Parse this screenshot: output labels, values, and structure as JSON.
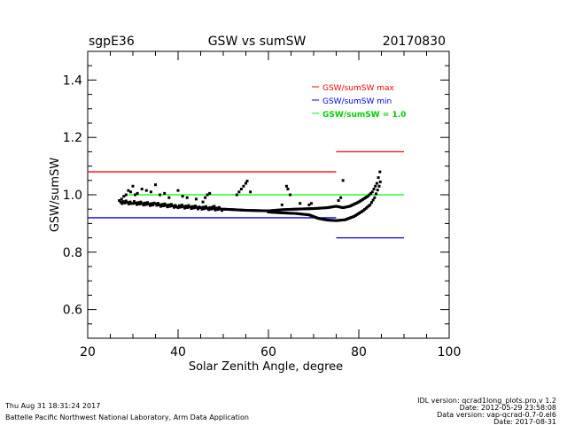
{
  "header": {
    "site": "sgpE36",
    "date": "20170830"
  },
  "footer": {
    "left_line1": "Thu Aug 31 18:31:24 2017",
    "left_line2": "Battelle Pacific Northwest National Laboratory, Arm Data Application",
    "right_line1": "IDL version: qcrad1long_plots.pro,v 1.2",
    "right_line2": "Date: 2012-05-29 23:58:08",
    "right_line3": "Data version: vap-qcrad-0.7-0.el6",
    "right_line4": "Date: 2017-08-31"
  },
  "colors": {
    "max": "#ff0000",
    "min": "#0000ff",
    "unity": "#00ff00",
    "points": "#000000"
  },
  "chart_data": {
    "type": "scatter",
    "title": "GSW vs sumSW",
    "xlabel": "Solar Zenith Angle, degree",
    "ylabel": "GSW/sumSW",
    "xlim": [
      20,
      100
    ],
    "ylim": [
      0.5,
      1.5
    ],
    "xticks": [
      "20",
      "40",
      "60",
      "80",
      "100"
    ],
    "xtick_values": [
      20,
      40,
      60,
      80,
      100
    ],
    "yticks": [
      "0.6",
      "0.8",
      "1.0",
      "1.2",
      "1.4"
    ],
    "ytick_values": [
      0.6,
      0.8,
      1.0,
      1.2,
      1.4
    ],
    "legend": {
      "placement": "top-right",
      "entries": [
        {
          "label": "GSW/sumSW max",
          "color": "#ff0000"
        },
        {
          "label": "GSW/sumSW min",
          "color": "#0000ff"
        },
        {
          "label": "GSW/sumSW = 1.0",
          "color": "#00ff00"
        }
      ]
    },
    "reference_lines": [
      {
        "name": "max-low-sza",
        "y": 1.08,
        "x": [
          20,
          75
        ],
        "color": "#ff0000"
      },
      {
        "name": "min-low-sza",
        "y": 0.92,
        "x": [
          20,
          75
        ],
        "color": "#0000ff"
      },
      {
        "name": "max-high-sza",
        "y": 1.15,
        "x": [
          75,
          90
        ],
        "color": "#ff0000"
      },
      {
        "name": "min-high-sza",
        "y": 0.85,
        "x": [
          75,
          90
        ],
        "color": "#0000ff"
      },
      {
        "name": "unity",
        "y": 1.0,
        "x": [
          29,
          90
        ],
        "color": "#00ff00"
      }
    ],
    "series": [
      {
        "name": "upper-branch",
        "points": [
          [
            27,
            0.975
          ],
          [
            30,
            0.972
          ],
          [
            35,
            0.966
          ],
          [
            40,
            0.96
          ],
          [
            45,
            0.955
          ],
          [
            50,
            0.95
          ],
          [
            55,
            0.946
          ],
          [
            60,
            0.944
          ],
          [
            63,
            0.948
          ],
          [
            66,
            0.95
          ],
          [
            70,
            0.952
          ],
          [
            73,
            0.955
          ],
          [
            75,
            0.96
          ],
          [
            76.5,
            0.955
          ],
          [
            78,
            0.96
          ],
          [
            80,
            0.975
          ],
          [
            82,
            0.995
          ],
          [
            83,
            1.01
          ],
          [
            84,
            1.04
          ],
          [
            85,
            1.1
          ]
        ]
      },
      {
        "name": "lower-branch",
        "points": [
          [
            60,
            0.94
          ],
          [
            63,
            0.937
          ],
          [
            66,
            0.935
          ],
          [
            69,
            0.93
          ],
          [
            71,
            0.918
          ],
          [
            73,
            0.912
          ],
          [
            75,
            0.91
          ],
          [
            77,
            0.913
          ],
          [
            79,
            0.925
          ],
          [
            81,
            0.945
          ],
          [
            82.5,
            0.965
          ],
          [
            83.5,
            0.99
          ],
          [
            84.5,
            1.03
          ],
          [
            85,
            1.06
          ]
        ]
      },
      {
        "name": "outliers",
        "points": [
          [
            27.5,
            0.985
          ],
          [
            28,
            0.995
          ],
          [
            28.5,
            1.0
          ],
          [
            29,
            1.015
          ],
          [
            29.5,
            1.01
          ],
          [
            30,
            1.03
          ],
          [
            30.5,
            1.0
          ],
          [
            31,
            1.005
          ],
          [
            32,
            1.02
          ],
          [
            33,
            1.015
          ],
          [
            34,
            1.01
          ],
          [
            35,
            1.035
          ],
          [
            36,
            1.0
          ],
          [
            37,
            1.005
          ],
          [
            38,
            0.99
          ],
          [
            40,
            1.015
          ],
          [
            41,
            0.995
          ],
          [
            42,
            0.99
          ],
          [
            44,
            0.985
          ],
          [
            45.5,
            0.975
          ],
          [
            46,
            0.99
          ],
          [
            46.5,
            1.0
          ],
          [
            47,
            1.005
          ],
          [
            48,
            0.96
          ],
          [
            53,
            1.0
          ],
          [
            53.5,
            1.01
          ],
          [
            54,
            1.02
          ],
          [
            54.5,
            1.03
          ],
          [
            55,
            1.04
          ],
          [
            55.3,
            1.048
          ],
          [
            56,
            1.01
          ],
          [
            63,
            0.965
          ],
          [
            64,
            1.03
          ],
          [
            64.3,
            1.02
          ],
          [
            64.8,
            1.0
          ],
          [
            67,
            0.97
          ],
          [
            69,
            0.965
          ],
          [
            69.5,
            0.97
          ],
          [
            75.5,
            0.98
          ],
          [
            76,
            0.99
          ],
          [
            76.5,
            1.05
          ]
        ]
      }
    ]
  }
}
